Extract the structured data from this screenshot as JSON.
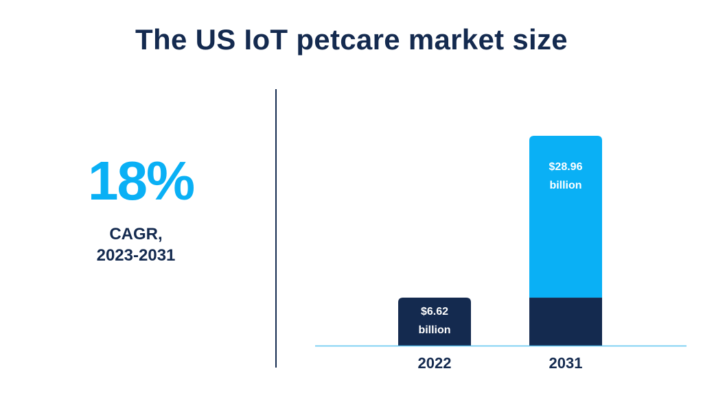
{
  "title": "The US IoT petcare market size",
  "kpi": {
    "value": "18%",
    "label_line1": "CAGR,",
    "label_line2": "2023-2031"
  },
  "colors": {
    "navy": "#142a4f",
    "accent": "#0ab0f5",
    "baseline": "#5bc4f0"
  },
  "chart_data": {
    "type": "bar",
    "stacked": true,
    "categories": [
      "2022",
      "2031"
    ],
    "series": [
      {
        "values": [
          6.62,
          6.62
        ]
      },
      {
        "values": [
          0,
          22.34
        ]
      }
    ],
    "totals": [
      6.62,
      28.96
    ],
    "data_labels": [
      {
        "category": "2022",
        "line1": "$6.62",
        "line2": "billion"
      },
      {
        "category": "2031",
        "line1": "$28.96",
        "line2": "billion"
      }
    ],
    "ylim": [
      0,
      28.96
    ],
    "grid": false
  }
}
